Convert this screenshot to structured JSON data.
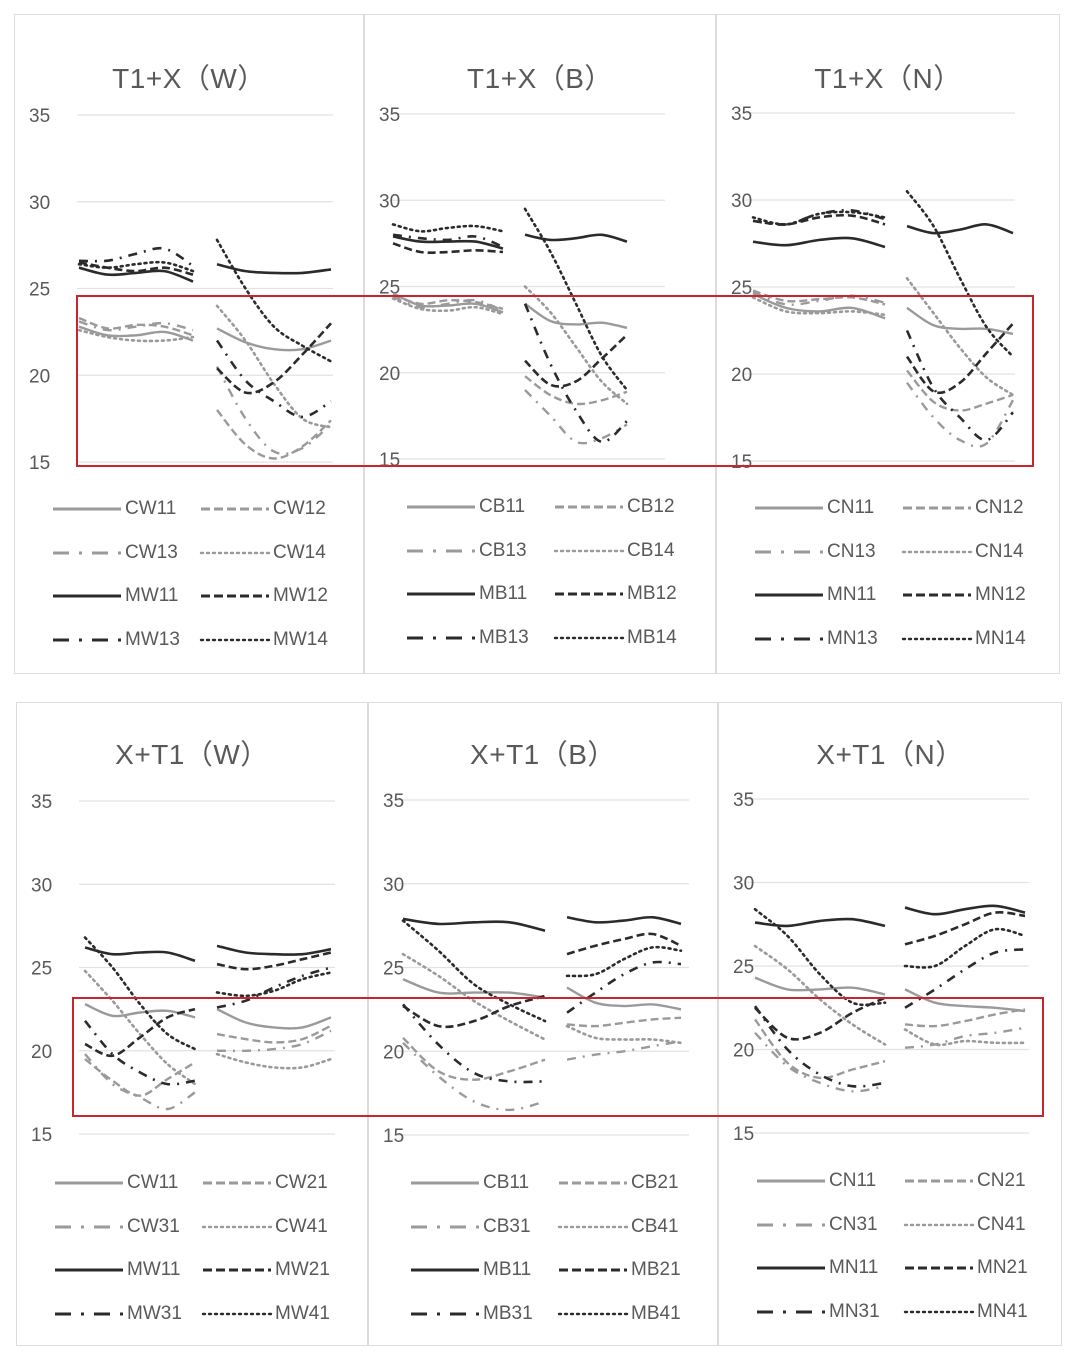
{
  "styles": {
    "C_color": "#9a9a9a",
    "M_color": "#2b2b2b",
    "grid_color": "#e2e2e2",
    "highlight_color": "#c8262c"
  },
  "chart_data": [
    {
      "type": "line",
      "title": "T1+X（W）",
      "yticks": [
        "35",
        "30",
        "25",
        "20",
        "15"
      ],
      "ylim": [
        15,
        35
      ],
      "grid": true,
      "legend_position": "bottom",
      "highlight_yrange": [
        15,
        24.6
      ],
      "series": [
        {
          "name": "CW11",
          "group": "C",
          "style": "solid",
          "left": [
            22.8,
            22.3,
            22.3,
            22.5,
            22.0
          ],
          "right": [
            22.7,
            21.9,
            21.5,
            21.5,
            22.0
          ]
        },
        {
          "name": "CW12",
          "group": "C",
          "style": "dash",
          "left": [
            23.3,
            22.7,
            22.9,
            22.8,
            22.3
          ],
          "right": [
            18.0,
            16.0,
            15.2,
            15.9,
            17.4
          ]
        },
        {
          "name": "CW13",
          "group": "C",
          "style": "dashdot",
          "left": [
            23.1,
            22.6,
            22.8,
            23.0,
            22.6
          ],
          "right": [
            20.5,
            17.5,
            15.6,
            15.8,
            17.2
          ]
        },
        {
          "name": "CW14",
          "group": "C",
          "style": "dot",
          "left": [
            22.6,
            22.2,
            22.0,
            22.0,
            22.2
          ],
          "right": [
            24.0,
            22.0,
            19.5,
            17.5,
            17.0
          ]
        },
        {
          "name": "MW11",
          "group": "M",
          "style": "solid",
          "left": [
            26.2,
            25.8,
            25.9,
            26.0,
            25.4
          ],
          "right": [
            26.4,
            26.0,
            25.9,
            25.9,
            26.1
          ]
        },
        {
          "name": "MW12",
          "group": "M",
          "style": "dash",
          "left": [
            26.5,
            26.2,
            26.0,
            26.2,
            25.8
          ],
          "right": [
            20.4,
            19.0,
            19.6,
            21.2,
            23.0
          ]
        },
        {
          "name": "MW13",
          "group": "M",
          "style": "dashdot",
          "left": [
            26.6,
            26.6,
            27.0,
            27.3,
            26.3
          ],
          "right": [
            22.0,
            19.7,
            18.5,
            17.6,
            18.5
          ]
        },
        {
          "name": "MW14",
          "group": "M",
          "style": "dot",
          "left": [
            26.4,
            26.2,
            26.4,
            26.5,
            26.0
          ],
          "right": [
            27.8,
            25.0,
            22.8,
            21.7,
            20.8
          ]
        }
      ]
    },
    {
      "type": "line",
      "title": "T1+X（B）",
      "yticks": [
        "35",
        "30",
        "25",
        "20",
        "15"
      ],
      "ylim": [
        15,
        35
      ],
      "grid": true,
      "legend_position": "bottom",
      "highlight_yrange": [
        15,
        24.6
      ],
      "series": [
        {
          "name": "CB11",
          "group": "C",
          "style": "solid",
          "left": [
            24.6,
            23.9,
            23.9,
            24.0,
            23.5
          ],
          "right": [
            24.0,
            23.0,
            22.8,
            22.9,
            22.6
          ]
        },
        {
          "name": "CB12",
          "group": "C",
          "style": "dash",
          "left": [
            24.5,
            24.0,
            24.2,
            24.1,
            23.7
          ],
          "right": [
            19.8,
            18.7,
            18.2,
            18.4,
            18.9
          ]
        },
        {
          "name": "CB13",
          "group": "C",
          "style": "dashdot",
          "left": [
            24.4,
            23.8,
            24.0,
            24.2,
            23.6
          ],
          "right": [
            19.0,
            17.5,
            16.0,
            16.2,
            17.0
          ]
        },
        {
          "name": "CB14",
          "group": "C",
          "style": "dot",
          "left": [
            24.3,
            23.7,
            23.6,
            23.8,
            23.4
          ],
          "right": [
            25.0,
            23.5,
            21.5,
            19.5,
            18.2
          ]
        },
        {
          "name": "MB11",
          "group": "M",
          "style": "solid",
          "left": [
            27.9,
            27.6,
            27.6,
            27.6,
            27.2
          ],
          "right": [
            28.0,
            27.7,
            27.8,
            28.0,
            27.6
          ]
        },
        {
          "name": "MB12",
          "group": "M",
          "style": "dash",
          "left": [
            27.5,
            27.0,
            27.0,
            27.1,
            27.0
          ],
          "right": [
            20.7,
            19.3,
            19.5,
            20.8,
            22.2
          ]
        },
        {
          "name": "MB13",
          "group": "M",
          "style": "dashdot",
          "left": [
            28.0,
            27.8,
            27.7,
            27.9,
            27.3
          ],
          "right": [
            24.0,
            20.5,
            17.8,
            16.0,
            17.2
          ]
        },
        {
          "name": "MB14",
          "group": "M",
          "style": "dot",
          "left": [
            28.6,
            28.2,
            28.4,
            28.5,
            28.2
          ],
          "right": [
            29.5,
            27.0,
            24.0,
            21.0,
            19.0
          ]
        }
      ]
    },
    {
      "type": "line",
      "title": "T1+X（N）",
      "yticks": [
        "35",
        "30",
        "25",
        "20",
        "15"
      ],
      "ylim": [
        15,
        35
      ],
      "grid": true,
      "legend_position": "bottom",
      "highlight_yrange": [
        15,
        24.6
      ],
      "series": [
        {
          "name": "CN11",
          "group": "C",
          "style": "solid",
          "left": [
            24.6,
            23.8,
            23.6,
            23.8,
            23.2
          ],
          "right": [
            23.8,
            22.8,
            22.6,
            22.6,
            22.3
          ]
        },
        {
          "name": "CN12",
          "group": "C",
          "style": "dash",
          "left": [
            24.8,
            24.2,
            24.3,
            24.4,
            24.0
          ],
          "right": [
            20.2,
            18.4,
            17.9,
            18.3,
            18.8
          ]
        },
        {
          "name": "CN13",
          "group": "C",
          "style": "dashdot",
          "left": [
            24.7,
            24.0,
            24.2,
            24.5,
            24.1
          ],
          "right": [
            19.5,
            17.5,
            16.2,
            16.0,
            18.5
          ]
        },
        {
          "name": "CN14",
          "group": "C",
          "style": "dot",
          "left": [
            24.4,
            23.6,
            23.5,
            23.6,
            23.4
          ],
          "right": [
            25.5,
            23.5,
            21.5,
            19.8,
            18.8
          ]
        },
        {
          "name": "MN11",
          "group": "M",
          "style": "solid",
          "left": [
            27.6,
            27.4,
            27.7,
            27.8,
            27.3
          ],
          "right": [
            28.5,
            28.1,
            28.3,
            28.6,
            28.1
          ]
        },
        {
          "name": "MN12",
          "group": "M",
          "style": "dash",
          "left": [
            28.8,
            28.6,
            29.0,
            29.1,
            28.6
          ],
          "right": [
            21.0,
            19.0,
            19.5,
            21.2,
            22.9
          ]
        },
        {
          "name": "MN13",
          "group": "M",
          "style": "dashdot",
          "left": [
            28.8,
            28.6,
            29.2,
            29.4,
            28.9
          ],
          "right": [
            22.5,
            19.2,
            17.5,
            16.2,
            17.8
          ]
        },
        {
          "name": "MN14",
          "group": "M",
          "style": "dot",
          "left": [
            29.0,
            28.6,
            29.2,
            29.3,
            29.0
          ],
          "right": [
            30.5,
            28.5,
            25.5,
            22.7,
            21.0
          ]
        }
      ]
    },
    {
      "type": "line",
      "title": "X+T1（W）",
      "yticks": [
        "35",
        "30",
        "25",
        "20",
        "15"
      ],
      "ylim": [
        15,
        35
      ],
      "grid": true,
      "legend_position": "bottom",
      "highlight_yrange": [
        16.1,
        23.0
      ],
      "series": [
        {
          "name": "CW11",
          "group": "C",
          "style": "solid",
          "left": [
            22.8,
            22.1,
            22.3,
            22.4,
            22.0
          ],
          "right": [
            22.5,
            21.7,
            21.4,
            21.4,
            22.0
          ]
        },
        {
          "name": "CW21",
          "group": "C",
          "style": "dash",
          "left": [
            19.5,
            18.2,
            17.3,
            18.3,
            19.3
          ],
          "right": [
            21.0,
            20.7,
            20.5,
            20.7,
            21.5
          ]
        },
        {
          "name": "CW31",
          "group": "C",
          "style": "dashdot",
          "left": [
            19.8,
            18.0,
            17.2,
            16.5,
            17.5
          ],
          "right": [
            20.0,
            20.0,
            20.1,
            20.4,
            21.2
          ]
        },
        {
          "name": "CW41",
          "group": "C",
          "style": "dot",
          "left": [
            24.8,
            23.0,
            21.0,
            19.2,
            18.0
          ],
          "right": [
            19.8,
            19.3,
            19.0,
            19.0,
            19.5
          ]
        },
        {
          "name": "MW11",
          "group": "M",
          "style": "solid",
          "left": [
            26.2,
            25.8,
            25.9,
            25.9,
            25.4
          ],
          "right": [
            26.3,
            25.9,
            25.8,
            25.8,
            26.1
          ]
        },
        {
          "name": "MW21",
          "group": "M",
          "style": "dash",
          "left": [
            20.4,
            19.7,
            20.8,
            22.0,
            22.5
          ],
          "right": [
            25.2,
            24.9,
            25.1,
            25.5,
            25.9
          ]
        },
        {
          "name": "MW31",
          "group": "M",
          "style": "dashdot",
          "left": [
            21.8,
            19.8,
            18.7,
            18.0,
            18.2
          ],
          "right": [
            22.6,
            23.0,
            23.8,
            24.5,
            25.0
          ]
        },
        {
          "name": "MW41",
          "group": "M",
          "style": "dot",
          "left": [
            26.8,
            25.0,
            22.8,
            21.0,
            20.1
          ],
          "right": [
            23.5,
            23.3,
            23.6,
            24.3,
            24.7
          ]
        }
      ]
    },
    {
      "type": "line",
      "title": "X+T1（B）",
      "yticks": [
        "35",
        "30",
        "25",
        "20",
        "15"
      ],
      "ylim": [
        15,
        35
      ],
      "grid": true,
      "legend_position": "bottom",
      "highlight_yrange": [
        16.1,
        23.0
      ],
      "series": [
        {
          "name": "CB11",
          "group": "C",
          "style": "solid",
          "left": [
            24.3,
            23.5,
            23.5,
            23.5,
            23.2
          ],
          "right": [
            23.8,
            22.9,
            22.7,
            22.8,
            22.5
          ]
        },
        {
          "name": "CB21",
          "group": "C",
          "style": "dash",
          "left": [
            20.8,
            18.8,
            18.3,
            18.8,
            19.5
          ],
          "right": [
            21.6,
            21.5,
            21.7,
            21.9,
            22.0
          ]
        },
        {
          "name": "CB31",
          "group": "C",
          "style": "dashdot",
          "left": [
            20.5,
            18.5,
            17.0,
            16.5,
            17.0
          ],
          "right": [
            19.5,
            19.8,
            20.0,
            20.3,
            20.6
          ]
        },
        {
          "name": "CB41",
          "group": "C",
          "style": "dot",
          "left": [
            25.8,
            24.5,
            23.0,
            21.8,
            20.7
          ],
          "right": [
            21.5,
            20.8,
            20.7,
            20.7,
            20.5
          ]
        },
        {
          "name": "MB11",
          "group": "M",
          "style": "solid",
          "left": [
            27.9,
            27.6,
            27.7,
            27.7,
            27.2
          ],
          "right": [
            28.0,
            27.7,
            27.8,
            28.0,
            27.6
          ]
        },
        {
          "name": "MB21",
          "group": "M",
          "style": "dash",
          "left": [
            22.7,
            21.5,
            21.8,
            22.7,
            23.3
          ],
          "right": [
            25.8,
            26.3,
            26.7,
            27.0,
            26.3
          ]
        },
        {
          "name": "MB31",
          "group": "M",
          "style": "dashdot",
          "left": [
            22.8,
            20.4,
            18.7,
            18.2,
            18.2
          ],
          "right": [
            22.3,
            23.5,
            24.6,
            25.3,
            25.2
          ]
        },
        {
          "name": "MB41",
          "group": "M",
          "style": "dot",
          "left": [
            27.8,
            26.0,
            24.0,
            22.8,
            21.8
          ],
          "right": [
            24.5,
            24.6,
            25.5,
            26.2,
            26.0
          ]
        }
      ]
    },
    {
      "type": "line",
      "title": "X+T1（N）",
      "yticks": [
        "35",
        "30",
        "25",
        "20",
        "15"
      ],
      "ylim": [
        15,
        35
      ],
      "grid": true,
      "legend_position": "bottom",
      "highlight_yrange": [
        16.1,
        23.0
      ],
      "series": [
        {
          "name": "CN11",
          "group": "C",
          "style": "solid",
          "left": [
            24.3,
            23.6,
            23.6,
            23.7,
            23.3
          ],
          "right": [
            23.6,
            22.8,
            22.6,
            22.5,
            22.3
          ]
        },
        {
          "name": "CN21",
          "group": "C",
          "style": "dash",
          "left": [
            21.8,
            19.2,
            18.3,
            18.8,
            19.3
          ],
          "right": [
            21.5,
            21.4,
            21.7,
            22.1,
            22.4
          ]
        },
        {
          "name": "CN31",
          "group": "C",
          "style": "dashdot",
          "left": [
            21.0,
            19.0,
            18.0,
            17.5,
            17.8
          ],
          "right": [
            20.1,
            20.3,
            20.8,
            21.0,
            21.3
          ]
        },
        {
          "name": "CN41",
          "group": "C",
          "style": "dot",
          "left": [
            26.2,
            24.8,
            23.0,
            21.5,
            20.3
          ],
          "right": [
            21.2,
            20.3,
            20.5,
            20.4,
            20.4
          ]
        },
        {
          "name": "MN11",
          "group": "M",
          "style": "solid",
          "left": [
            27.6,
            27.4,
            27.7,
            27.8,
            27.4
          ],
          "right": [
            28.5,
            28.1,
            28.4,
            28.6,
            28.2
          ]
        },
        {
          "name": "MN21",
          "group": "M",
          "style": "dash",
          "left": [
            22.5,
            20.7,
            21.0,
            22.2,
            23.1
          ],
          "right": [
            26.3,
            26.8,
            27.5,
            28.2,
            28.0
          ]
        },
        {
          "name": "MN31",
          "group": "M",
          "style": "dashdot",
          "left": [
            22.6,
            20.0,
            18.5,
            17.8,
            18.0
          ],
          "right": [
            22.5,
            23.6,
            24.8,
            25.8,
            26.0
          ]
        },
        {
          "name": "MN41",
          "group": "M",
          "style": "dot",
          "left": [
            28.4,
            26.8,
            24.5,
            22.8,
            22.8
          ],
          "right": [
            25.0,
            25.0,
            26.2,
            27.2,
            26.8
          ]
        }
      ]
    }
  ]
}
